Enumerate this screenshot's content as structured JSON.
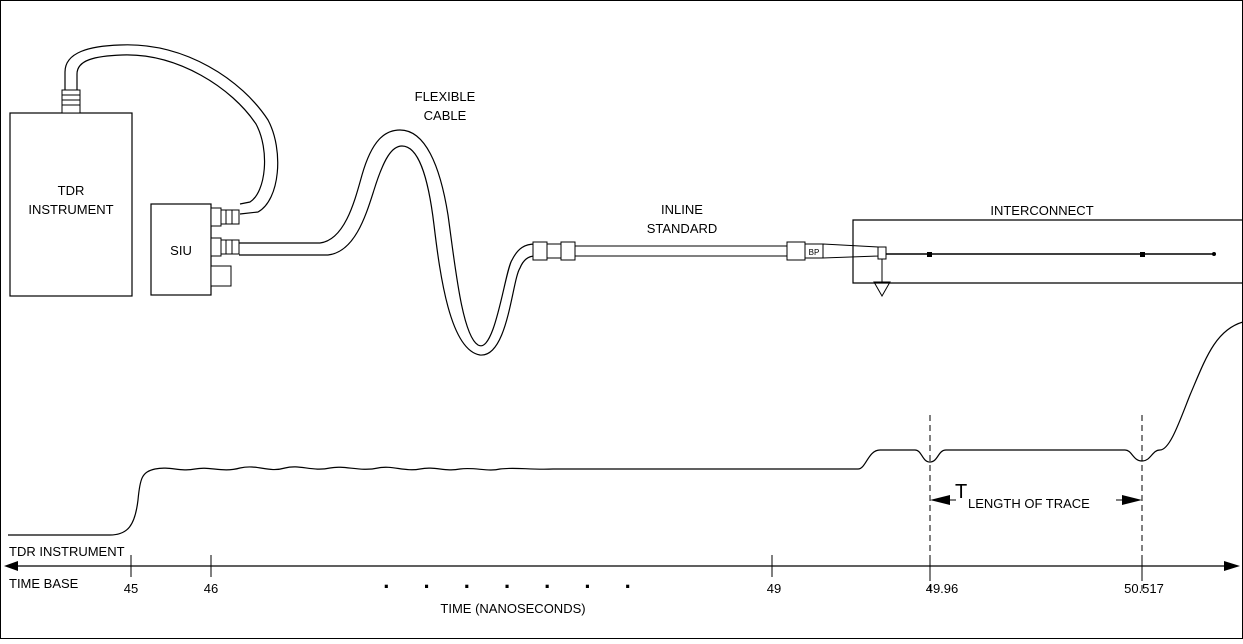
{
  "labels": {
    "tdr_instrument": [
      "TDR",
      "INSTRUMENT"
    ],
    "siu": "SIU",
    "flexible_cable": [
      "FLEXIBLE",
      "CABLE"
    ],
    "inline_standard": [
      "INLINE",
      "STANDARD"
    ],
    "interconnect": "INTERCONNECT",
    "connector_marking": "BP"
  },
  "time_base": {
    "label_top": "TDR INSTRUMENT",
    "label_bottom": "TIME BASE"
  },
  "axis": {
    "ticks": [
      "45",
      "46",
      "49",
      "49.96",
      "50.517"
    ],
    "ellipsis": ". . . . . . .",
    "title": "TIME (NANOSECONDS)"
  },
  "measurement": {
    "symbol": "T",
    "subscript": "LENGTH OF TRACE"
  }
}
